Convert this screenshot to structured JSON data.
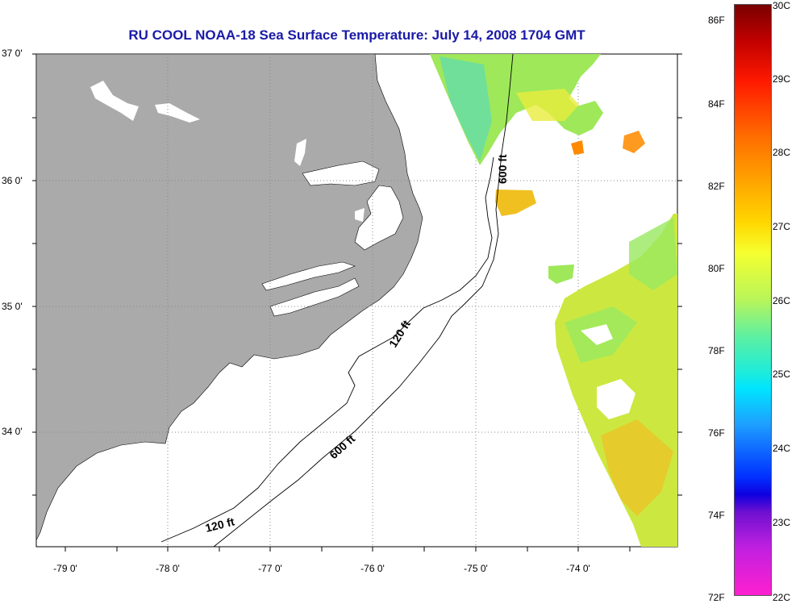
{
  "title": "RU COOL  NOAA-18  Sea Surface Temperature:  July 14, 2008 1704 GMT",
  "lat_labels": [
    "37 0'",
    "36 0'",
    "35 0'",
    "34 0'"
  ],
  "lon_labels": [
    "-79 0'",
    "-78 0'",
    "-77 0'",
    "-76 0'",
    "-75 0'",
    "-74 0'"
  ],
  "isobath_labels": {
    "a": "120 ft",
    "b": "600 ft",
    "c": "600 ft",
    "d": "120 ft"
  },
  "colorbar": {
    "f_labels": [
      "86F",
      "84F",
      "82F",
      "80F",
      "78F",
      "76F",
      "74F",
      "72F"
    ],
    "c_labels": [
      "30C",
      "29C",
      "28C",
      "27C",
      "26C",
      "25C",
      "24C",
      "23C",
      "22C"
    ]
  },
  "colors": {
    "land": "#aaaaaa",
    "title": "#1a1aa8",
    "grid": "#888888"
  }
}
